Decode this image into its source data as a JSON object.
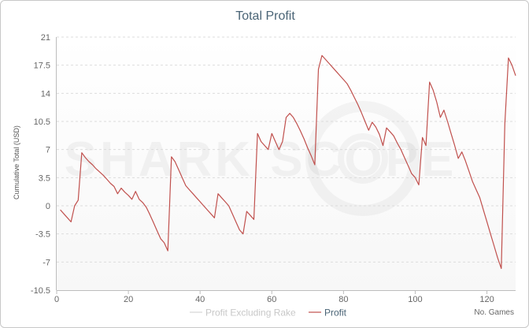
{
  "chart_data": {
    "type": "line",
    "title": "Total Profit",
    "xlabel": "No. Games",
    "ylabel": "Cumulative Total (USD)",
    "xlim": [
      0,
      128
    ],
    "ylim": [
      -10.5,
      21
    ],
    "x_ticks": [
      0,
      20,
      40,
      60,
      80,
      100,
      120
    ],
    "y_ticks": [
      -10.5,
      -7,
      -3.5,
      0,
      3.5,
      7,
      10.5,
      14,
      17.5,
      21
    ],
    "y_tick_labels": [
      "-10.5",
      "-7",
      "-3.5",
      "0",
      "3.5",
      "7",
      "10.5",
      "14",
      "17.5",
      "21"
    ],
    "grid": "horizontal dashed",
    "legend_position": "bottom-center",
    "watermark": "SHARK SCOPE",
    "series": [
      {
        "name": "Profit Excluding Rake",
        "color": "#d4d4d4",
        "x": [],
        "y": []
      },
      {
        "name": "Profit",
        "color": "#c0504d",
        "x": [
          1,
          2,
          3,
          4,
          5,
          6,
          7,
          8,
          9,
          10,
          11,
          12,
          13,
          14,
          15,
          16,
          17,
          18,
          19,
          20,
          21,
          22,
          23,
          24,
          25,
          26,
          27,
          28,
          29,
          30,
          31,
          32,
          33,
          34,
          35,
          36,
          37,
          38,
          39,
          40,
          41,
          42,
          43,
          44,
          45,
          46,
          47,
          48,
          49,
          50,
          51,
          52,
          53,
          54,
          55,
          56,
          57,
          58,
          59,
          60,
          61,
          62,
          63,
          64,
          65,
          66,
          67,
          68,
          69,
          70,
          71,
          72,
          73,
          74,
          75,
          76,
          77,
          78,
          79,
          80,
          81,
          82,
          83,
          84,
          85,
          86,
          87,
          88,
          89,
          90,
          91,
          92,
          93,
          94,
          95,
          96,
          97,
          98,
          99,
          100,
          101,
          102,
          103,
          104,
          105,
          106,
          107,
          108,
          109,
          110,
          111,
          112,
          113,
          114,
          115,
          116,
          117,
          118,
          119,
          120,
          121,
          122,
          123,
          124,
          125,
          126,
          127,
          128
        ],
        "y": [
          -0.5,
          -1.0,
          -1.5,
          -2.0,
          0.0,
          0.7,
          6.6,
          6.0,
          5.5,
          5.1,
          4.6,
          4.2,
          3.8,
          3.3,
          2.8,
          2.4,
          1.5,
          2.2,
          1.7,
          1.3,
          0.8,
          1.8,
          0.8,
          0.4,
          -0.2,
          -1.1,
          -2.1,
          -3.1,
          -4.1,
          -4.6,
          -5.6,
          6.1,
          5.5,
          4.5,
          3.5,
          2.5,
          2.0,
          1.5,
          1.0,
          0.5,
          0.0,
          -0.5,
          -1.0,
          -1.5,
          1.5,
          1.0,
          0.5,
          0.0,
          -1.0,
          -2.0,
          -3.0,
          -3.5,
          -0.7,
          -1.2,
          -1.7,
          9.0,
          8.0,
          7.5,
          7.0,
          9.0,
          8.0,
          7.0,
          8.0,
          11.0,
          11.5,
          11.0,
          10.2,
          9.3,
          8.3,
          7.2,
          6.2,
          5.1,
          17.0,
          18.7,
          18.2,
          17.7,
          17.2,
          16.7,
          16.2,
          15.7,
          15.2,
          14.4,
          13.5,
          12.6,
          11.6,
          10.5,
          9.4,
          10.4,
          9.8,
          8.9,
          7.5,
          9.7,
          9.2,
          8.7,
          7.8,
          7.0,
          6.0,
          5.0,
          4.0,
          3.5,
          2.6,
          8.5,
          7.5,
          15.4,
          14.4,
          12.9,
          11.0,
          11.9,
          10.5,
          9.0,
          7.5,
          5.9,
          6.7,
          5.6,
          4.3,
          3.0,
          2.0,
          1.0,
          -0.5,
          -2.0,
          -3.5,
          -5.0,
          -6.5,
          -7.8,
          10.2,
          18.4,
          17.5,
          16.2
        ]
      }
    ]
  }
}
